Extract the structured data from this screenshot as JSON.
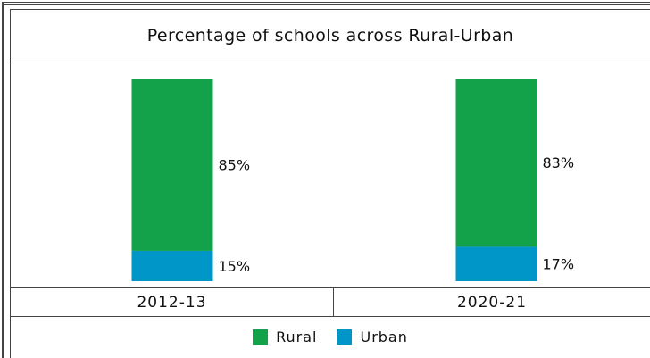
{
  "chart_data": {
    "type": "bar",
    "stacked": true,
    "percent_scale": true,
    "title": "Percentage of schools across Rural-Urban",
    "categories": [
      "2012-13",
      "2020-21"
    ],
    "series": [
      {
        "name": "Rural",
        "values": [
          85,
          83
        ],
        "labels": [
          "85%",
          "83%"
        ],
        "color": "#13a24a"
      },
      {
        "name": "Urban",
        "values": [
          15,
          17
        ],
        "labels": [
          "15%",
          "17%"
        ],
        "color": "#0096c7"
      }
    ],
    "ylim": [
      0,
      100
    ],
    "legend_position": "bottom"
  }
}
